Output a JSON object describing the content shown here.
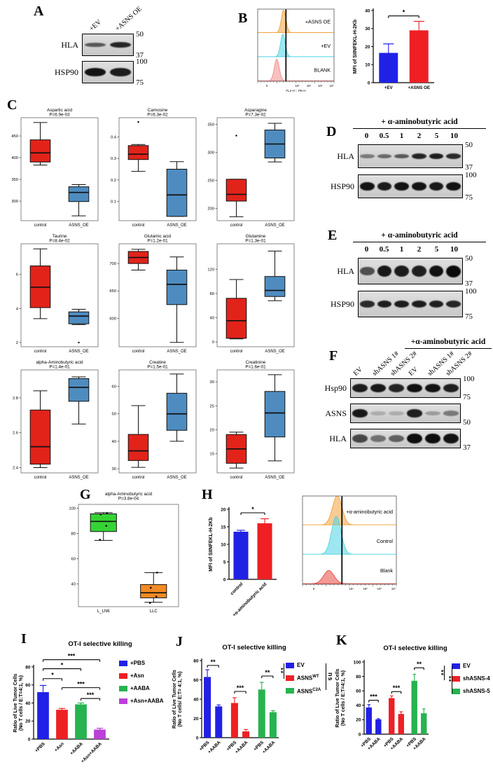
{
  "figure": {
    "panel_labels": {
      "A": "A",
      "B": "B",
      "C": "C",
      "D": "D",
      "E": "E",
      "F": "F",
      "G": "G",
      "H": "H",
      "I": "I",
      "J": "J",
      "K": "K"
    }
  },
  "titles": {
    "I": "OT-I selective killing",
    "J": "OT-I selective killing",
    "K": "OT-I selective killing"
  },
  "side_sigs": {
    "J": [
      "**",
      "ns"
    ],
    "K": [
      "**",
      "**"
    ]
  },
  "legends": {
    "I": [
      {
        "text": "+PBS",
        "color": "#2121e6"
      },
      {
        "text": "+Asn",
        "color": "#ee2024"
      },
      {
        "text": "+AABA",
        "color": "#27b34f"
      },
      {
        "text": "+Asn+AABA",
        "color": "#bb3fd9"
      }
    ],
    "J": [
      {
        "text": "EV",
        "color": "#2121e6"
      },
      {
        "text": "ASNS",
        "sup": "WT",
        "color": "#ee2024"
      },
      {
        "text": "ASNS",
        "sup": "C2A",
        "color": "#27b34f"
      }
    ],
    "K": [
      {
        "text": "EV",
        "color": "#2121e6"
      },
      {
        "text": "shASNS-4",
        "color": "#ee2024"
      },
      {
        "text": "shASNS-5",
        "color": "#27b34f"
      }
    ]
  },
  "blots": {
    "A": {
      "lanes": [
        "+EV",
        "+ASNS OE"
      ],
      "rows": [
        {
          "protein": "HLA",
          "markers": [
            "50",
            "37"
          ],
          "bh": 9,
          "bands": [
            0.55,
            0.85
          ]
        },
        {
          "protein": "HSP90",
          "markers": [
            "100",
            "75"
          ],
          "bh": 12,
          "bands": [
            0.95,
            0.9
          ]
        }
      ]
    },
    "D": {
      "header": "+ α-aminobutyric acid",
      "lanes": [
        "0",
        "0.5",
        "1",
        "2",
        "5",
        "10"
      ],
      "rows": [
        {
          "protein": "HLA",
          "markers": [
            "50",
            "37"
          ],
          "bh": 9,
          "bands": [
            0.35,
            0.45,
            0.55,
            0.85,
            0.9,
            0.82
          ]
        },
        {
          "protein": "HSP90",
          "markers": [
            "100",
            "75"
          ],
          "bh": 13,
          "bands": [
            0.95,
            0.9,
            0.95,
            0.95,
            0.92,
            0.95
          ]
        }
      ]
    },
    "E": {
      "header": "+ α-aminobutyric acid",
      "lanes": [
        "0",
        "0.5",
        "1",
        "2",
        "5",
        "10"
      ],
      "rows": [
        {
          "protein": "HLA",
          "markers": [
            "50",
            "37"
          ],
          "bh": 17,
          "bands": [
            0.6,
            0.92,
            0.9,
            0.88,
            0.96,
            1
          ]
        },
        {
          "protein": "HSP90",
          "markers": [
            "100",
            "75"
          ],
          "bh": 11,
          "bands": [
            0.82,
            0.9,
            0.9,
            0.9,
            0.88,
            0.85
          ]
        }
      ]
    },
    "F": {
      "header": "+α-aminobutyric acid",
      "lanes": [
        "EV",
        "shASNS 1#",
        "shASNS 2#",
        "EV",
        "shASNS 1#",
        "shASNS 2#"
      ],
      "rows": [
        {
          "protein": "Hsp90",
          "markers": [
            "100",
            "75"
          ],
          "bh": 13,
          "bands": [
            0.9,
            0.92,
            0.85,
            0.97,
            0.95,
            0.88
          ]
        },
        {
          "protein": "ASNS",
          "markers": [
            "50"
          ],
          "bh": 12,
          "bands": [
            0.92,
            0.05,
            0.05,
            0.88,
            0.15,
            0.35
          ]
        },
        {
          "protein": "HLA",
          "markers": [
            "37"
          ],
          "bh": 15,
          "bands": [
            0.65,
            0.4,
            0.5,
            0.98,
            0.98,
            0.95
          ]
        }
      ]
    }
  },
  "flows": {
    "B": {
      "gate": 0.37,
      "xlabel": "FL2-H :: PE-H",
      "xticks": [
        "0",
        "10⁴",
        "10⁵",
        "10⁶",
        "10⁷"
      ],
      "traces": [
        {
          "label": "+ASNS OE",
          "color": "#f2a33c",
          "peak": 0.34,
          "sigma": 0.03,
          "amp": 0.95
        },
        {
          "label": "+EV",
          "color": "#4fd4e4",
          "peak": 0.33,
          "sigma": 0.03,
          "amp": 0.95
        },
        {
          "label": "BLANK",
          "color": "#f28c8c",
          "peak": 0.25,
          "sigma": 0.032,
          "amp": 0.9
        }
      ]
    },
    "H": {
      "gate": 0.42,
      "xlabel": "",
      "xticks": [
        "0",
        "10⁴",
        "10⁵",
        "10⁶",
        "10⁷"
      ],
      "traces": [
        {
          "label": "+α-aminobutyric acid",
          "color": "#f2a33c",
          "peak": 0.37,
          "sigma": 0.05,
          "amp": 1.0
        },
        {
          "label": "Control",
          "color": "#4fd4e4",
          "peak": 0.36,
          "sigma": 0.05,
          "amp": 1.3
        },
        {
          "label": "Blank",
          "color": "#e84840",
          "peak": 0.28,
          "sigma": 0.055,
          "amp": 0.45
        }
      ]
    }
  },
  "chart_data": [
    {
      "id": "bar-B",
      "type": "bar",
      "ylabel": "MFI of SIINFEKL-H-2Kb",
      "ylim": [
        0,
        40
      ],
      "yticks": [
        0,
        10,
        20,
        30,
        40
      ],
      "bars": [
        {
          "x": 0,
          "v": 16.5,
          "err": 5,
          "color": "#2121e6",
          "label": "+EV"
        },
        {
          "x": 1,
          "v": 29,
          "err": 5,
          "color": "#ee2024",
          "label": "+ASNS OE"
        }
      ],
      "sigs": [
        {
          "a": 0,
          "b": 1,
          "y": 37,
          "label": "*"
        }
      ]
    },
    {
      "id": "box-aspartic",
      "type": "box",
      "title": "Aspartic acid",
      "subtitle": "P=6.9e-03",
      "categories": [
        "control",
        "ASNS_OE"
      ],
      "colors": [
        "#e2231a",
        "#4e8cc0"
      ],
      "ylim": [
        255,
        492
      ],
      "yticks": [
        300,
        350,
        400,
        450
      ],
      "boxes": [
        {
          "lo": 383,
          "q1": 390,
          "med": 411,
          "q3": 441,
          "hi": 481
        },
        {
          "lo": 266,
          "q1": 299,
          "med": 320,
          "q3": 333,
          "hi": 338
        }
      ],
      "outliers": [
        [],
        []
      ]
    },
    {
      "id": "box-carnosine",
      "type": "box",
      "title": "Carnosine",
      "subtitle": "P=6.3e-02",
      "categories": [
        "control",
        "ASNS_OE"
      ],
      "colors": [
        "#e2231a",
        "#4e8cc0"
      ],
      "ylim": [
        0.01,
        0.49
      ],
      "yticks": [
        0.1,
        0.2,
        0.3,
        0.4
      ],
      "boxes": [
        {
          "lo": 0.24,
          "q1": 0.295,
          "med": 0.32,
          "q3": 0.36,
          "hi": 0.365
        },
        {
          "lo": 0.03,
          "q1": 0.03,
          "med": 0.13,
          "q3": 0.25,
          "hi": 0.285
        }
      ],
      "outliers": [
        [
          0.47
        ],
        []
      ]
    },
    {
      "id": "box-asparagine",
      "type": "box",
      "title": "Asparagine",
      "subtitle": "P=7.3e-02",
      "categories": [
        "control",
        "ASNS_OE"
      ],
      "colors": [
        "#e2231a",
        "#4e8cc0"
      ],
      "ylim": [
        178,
        362
      ],
      "yticks": [
        200,
        250,
        300,
        350
      ],
      "boxes": [
        {
          "lo": 185,
          "q1": 213,
          "med": 225,
          "q3": 252,
          "hi": 252
        },
        {
          "lo": 283,
          "q1": 290,
          "med": 315,
          "q3": 340,
          "hi": 352
        }
      ],
      "outliers": [
        [
          330
        ],
        []
      ]
    },
    {
      "id": "box-taurine",
      "type": "box",
      "title": "Taurine",
      "subtitle": "P=8.4e-02",
      "categories": [
        "control",
        "ASNS_OE"
      ],
      "colors": [
        "#e2231a",
        "#4e8cc0"
      ],
      "ylim": [
        1.75,
        7.8
      ],
      "yticks": [
        2,
        4,
        6
      ],
      "boxes": [
        {
          "lo": 3.4,
          "q1": 4.05,
          "med": 5.25,
          "q3": 6.5,
          "hi": 7.5
        },
        {
          "lo": 3.05,
          "q1": 3.1,
          "med": 3.55,
          "q3": 3.8,
          "hi": 3.95
        }
      ],
      "outliers": [
        [],
        [
          2.0
        ]
      ]
    },
    {
      "id": "box-glutamic",
      "type": "box",
      "title": "Glutamic acid",
      "subtitle": "P=1.2e-01",
      "categories": [
        "control",
        "ASNS_OE"
      ],
      "colors": [
        "#e2231a",
        "#4e8cc0"
      ],
      "ylim": [
        548,
        736
      ],
      "yticks": [
        600,
        650,
        700
      ],
      "boxes": [
        {
          "lo": 688,
          "q1": 700,
          "med": 711,
          "q3": 722,
          "hi": 726
        },
        {
          "lo": 556,
          "q1": 625,
          "med": 662,
          "q3": 688,
          "hi": 712
        }
      ],
      "outliers": [
        [],
        []
      ]
    },
    {
      "id": "box-glutamine",
      "type": "box",
      "title": "Glutamine",
      "subtitle": "P=1.3e-01",
      "categories": [
        "control",
        "ASNS_OE"
      ],
      "colors": [
        "#e2231a",
        "#4e8cc0"
      ],
      "ylim": [
        -8,
        162
      ],
      "yticks": [
        0,
        40,
        80,
        120
      ],
      "boxes": [
        {
          "lo": 5,
          "q1": 6,
          "med": 35,
          "q3": 72,
          "hi": 103
        },
        {
          "lo": 68,
          "q1": 75,
          "med": 85,
          "q3": 108,
          "hi": 150
        }
      ],
      "outliers": [
        [],
        []
      ]
    },
    {
      "id": "box-aaba",
      "type": "box",
      "title": "alpha-Aminobutyric acid",
      "subtitle": "P=1.4e-01",
      "categories": [
        "control",
        "ASNS_OE"
      ],
      "colors": [
        "#e2231a",
        "#4e8cc0"
      ],
      "ylim": [
        2.37,
        2.96
      ],
      "yticks": [
        2.4,
        2.6,
        2.8
      ],
      "boxes": [
        {
          "lo": 2.4,
          "q1": 2.42,
          "med": 2.52,
          "q3": 2.73,
          "hi": 2.84
        },
        {
          "lo": 2.65,
          "q1": 2.78,
          "med": 2.86,
          "q3": 2.91,
          "hi": 2.92
        }
      ],
      "outliers": [
        [],
        []
      ]
    },
    {
      "id": "box-creatine",
      "type": "box",
      "title": "Creatine",
      "subtitle": "P=1.5e-01",
      "categories": [
        "control",
        "ASNS_OE"
      ],
      "colors": [
        "#e2231a",
        "#4e8cc0"
      ],
      "ylim": [
        28.5,
        66
      ],
      "yticks": [
        30,
        40,
        50,
        60
      ],
      "boxes": [
        {
          "lo": 30.5,
          "q1": 33,
          "med": 36.5,
          "q3": 42.5,
          "hi": 53
        },
        {
          "lo": 40,
          "q1": 44,
          "med": 50,
          "q3": 57.5,
          "hi": 64.5
        }
      ],
      "outliers": [
        [],
        []
      ]
    },
    {
      "id": "box-creatinine",
      "type": "box",
      "title": "Creatinine",
      "subtitle": "P=1.6e-01",
      "categories": [
        "control",
        "ASNS_OE"
      ],
      "colors": [
        "#e2231a",
        "#4e8cc0"
      ],
      "ylim": [
        11,
        32.5
      ],
      "yticks": [
        15,
        20,
        25,
        30
      ],
      "boxes": [
        {
          "lo": 12,
          "q1": 13,
          "med": 16,
          "q3": 19,
          "hi": 19.5
        },
        {
          "lo": 13.5,
          "q1": 18.5,
          "med": 23.5,
          "q3": 28,
          "hi": 31.5
        }
      ],
      "outliers": [
        [],
        []
      ]
    },
    {
      "id": "box-G",
      "type": "box",
      "title": "alpha-Aminobutyric acid",
      "subtitle": "P=3.8e-04",
      "categories": [
        "L_LN6",
        "LLC"
      ],
      "colors": [
        "#35d435",
        "#f28a22"
      ],
      "ylim": [
        22,
        103
      ],
      "yticks": [
        40,
        60,
        80,
        100
      ],
      "boxes": [
        {
          "lo": 74.5,
          "q1": 81.5,
          "med": 89.5,
          "q3": 95.5,
          "hi": 96.5
        },
        {
          "lo": 25.5,
          "q1": 29,
          "med": 33,
          "q3": 39.5,
          "hi": 49
        }
      ],
      "points": [
        [
          96,
          95,
          86,
          75
        ],
        [
          49,
          37,
          30,
          25
        ]
      ]
    },
    {
      "id": "bar-H",
      "type": "bar",
      "rot": true,
      "ylabel": "MFI of SIINFEKL-H-2Kb",
      "ylim": [
        0,
        20
      ],
      "yticks": [
        0,
        5,
        10,
        15,
        20
      ],
      "bars": [
        {
          "x": 0,
          "v": 13.6,
          "err": 0.4,
          "color": "#2121e6",
          "label": "control"
        },
        {
          "x": 1,
          "v": 16,
          "err": 1.3,
          "color": "#ee2024",
          "label": "+α-aminobutyric acid"
        }
      ],
      "sigs": [
        {
          "a": 0,
          "b": 1,
          "y": 19,
          "label": "*"
        }
      ]
    },
    {
      "id": "bar-I",
      "type": "bar",
      "rot": true,
      "ylabel": [
        "Ratio of Live Tumor Cells",
        "(No T cells / E:T=4:1, %)"
      ],
      "ylim": [
        0,
        80
      ],
      "yticks": [
        0,
        20,
        40,
        60,
        80
      ],
      "bars": [
        {
          "x": 0,
          "v": 52,
          "err": 7.5,
          "color": "#2121e6",
          "label": "+PBS"
        },
        {
          "x": 1,
          "v": 32.5,
          "err": 1.5,
          "color": "#ee2024",
          "label": "+Asn"
        },
        {
          "x": 2,
          "v": 38.5,
          "err": 1.5,
          "color": "#27b34f",
          "label": "+AABA"
        },
        {
          "x": 3,
          "v": 10.5,
          "err": 1.5,
          "color": "#bb3fd9",
          "label": "+Asn+AABA"
        }
      ],
      "sigs": [
        {
          "a": 0,
          "b": 3,
          "y": 88,
          "label": "***"
        },
        {
          "a": 0,
          "b": 2,
          "y": 78,
          "label": "*"
        },
        {
          "a": 0,
          "b": 1,
          "y": 67,
          "label": "*"
        },
        {
          "a": 1,
          "b": 3,
          "y": 57,
          "label": "***"
        },
        {
          "a": 2,
          "b": 3,
          "y": 45,
          "label": "***"
        }
      ]
    },
    {
      "id": "bar-J",
      "type": "bar",
      "rot": true,
      "ylabel": [
        "Ratio of Live Tumor Cells",
        "(No T cells/ E:T= 4:1, %)"
      ],
      "ylim": [
        0,
        80
      ],
      "yticks": [
        0,
        20,
        40,
        60,
        80
      ],
      "bars": [
        {
          "x": 0,
          "v": 63,
          "err": 7.5,
          "color": "#2121e6",
          "label": "+PBS"
        },
        {
          "x": 1,
          "v": 32.5,
          "err": 1.5,
          "color": "#2121e6",
          "label": "+AABA"
        },
        {
          "x": 2.4,
          "v": 36,
          "err": 5.5,
          "color": "#ee2024",
          "label": "+PBS"
        },
        {
          "x": 3.4,
          "v": 6.5,
          "err": 2,
          "color": "#ee2024",
          "label": "+AABA"
        },
        {
          "x": 4.8,
          "v": 50,
          "err": 7.5,
          "color": "#27b34f",
          "label": "+PBS"
        },
        {
          "x": 5.8,
          "v": 26.5,
          "err": 1.5,
          "color": "#27b34f",
          "label": "+AABA"
        }
      ],
      "sigs": [
        {
          "a": 0,
          "b": 1,
          "y": 75,
          "label": "**"
        },
        {
          "a": 2,
          "b": 3,
          "y": 48,
          "label": "***"
        },
        {
          "a": 4,
          "b": 5,
          "y": 64,
          "label": "**"
        }
      ]
    },
    {
      "id": "bar-K",
      "type": "bar",
      "rot": true,
      "ylabel": [
        "Ratio of Live Tumor Cells",
        "(No T cells / E:T=4:1, %)"
      ],
      "ylim": [
        0,
        100
      ],
      "yticks": [
        0,
        20,
        40,
        60,
        80,
        100
      ],
      "bars": [
        {
          "x": 0,
          "v": 37,
          "err": 4,
          "color": "#2121e6",
          "label": "+PBS"
        },
        {
          "x": 1,
          "v": 20.5,
          "err": 1,
          "color": "#2121e6",
          "label": "+AABA"
        },
        {
          "x": 2.4,
          "v": 50,
          "err": 3,
          "color": "#ee2024",
          "label": "+PBS"
        },
        {
          "x": 3.4,
          "v": 28,
          "err": 3,
          "color": "#ee2024",
          "label": "+AABA"
        },
        {
          "x": 4.8,
          "v": 74,
          "err": 9,
          "color": "#27b34f",
          "label": "+PBS"
        },
        {
          "x": 5.8,
          "v": 29,
          "err": 6,
          "color": "#27b34f",
          "label": "+AABA"
        }
      ],
      "sigs": [
        {
          "a": 0,
          "b": 1,
          "y": 47,
          "label": "***"
        },
        {
          "a": 2,
          "b": 3,
          "y": 59,
          "label": "***"
        },
        {
          "a": 4,
          "b": 5,
          "y": 92,
          "label": "**"
        }
      ]
    }
  ]
}
